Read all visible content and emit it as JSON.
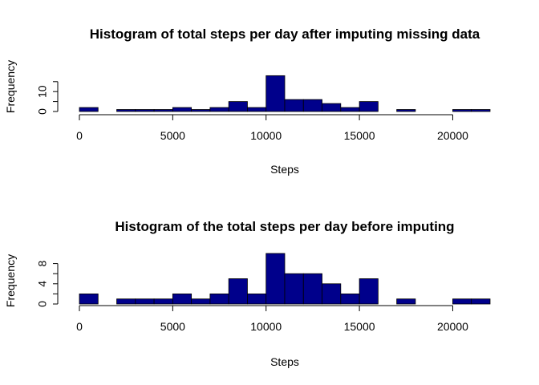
{
  "chart_data": [
    {
      "type": "bar",
      "title": "Histogram of total steps per day after imputing missing data",
      "xlabel": "Steps",
      "ylabel": "Frequency",
      "bin_width": 1000,
      "bin_start": 0,
      "values": [
        2,
        0,
        1,
        1,
        1,
        2,
        1,
        2,
        5,
        2,
        18,
        6,
        6,
        4,
        2,
        5,
        0,
        1,
        0,
        0,
        1,
        1
      ],
      "xlim": [
        0,
        22000
      ],
      "xticks": [
        0,
        5000,
        10000,
        15000,
        20000
      ],
      "yticks": [
        0,
        10
      ],
      "ylim": [
        0,
        18
      ],
      "color": "#00008B",
      "grid": false
    },
    {
      "type": "bar",
      "title": "Histogram of the total steps per day before imputing",
      "xlabel": "Steps",
      "ylabel": "Frequency",
      "bin_width": 1000,
      "bin_start": 0,
      "values": [
        2,
        0,
        1,
        1,
        1,
        2,
        1,
        2,
        5,
        2,
        10,
        6,
        6,
        4,
        2,
        5,
        0,
        1,
        0,
        0,
        1,
        1
      ],
      "xlim": [
        0,
        22000
      ],
      "xticks": [
        0,
        5000,
        10000,
        15000,
        20000
      ],
      "yticks": [
        0,
        4,
        8
      ],
      "ylim": [
        0,
        10
      ],
      "color": "#00008B",
      "grid": false
    }
  ]
}
